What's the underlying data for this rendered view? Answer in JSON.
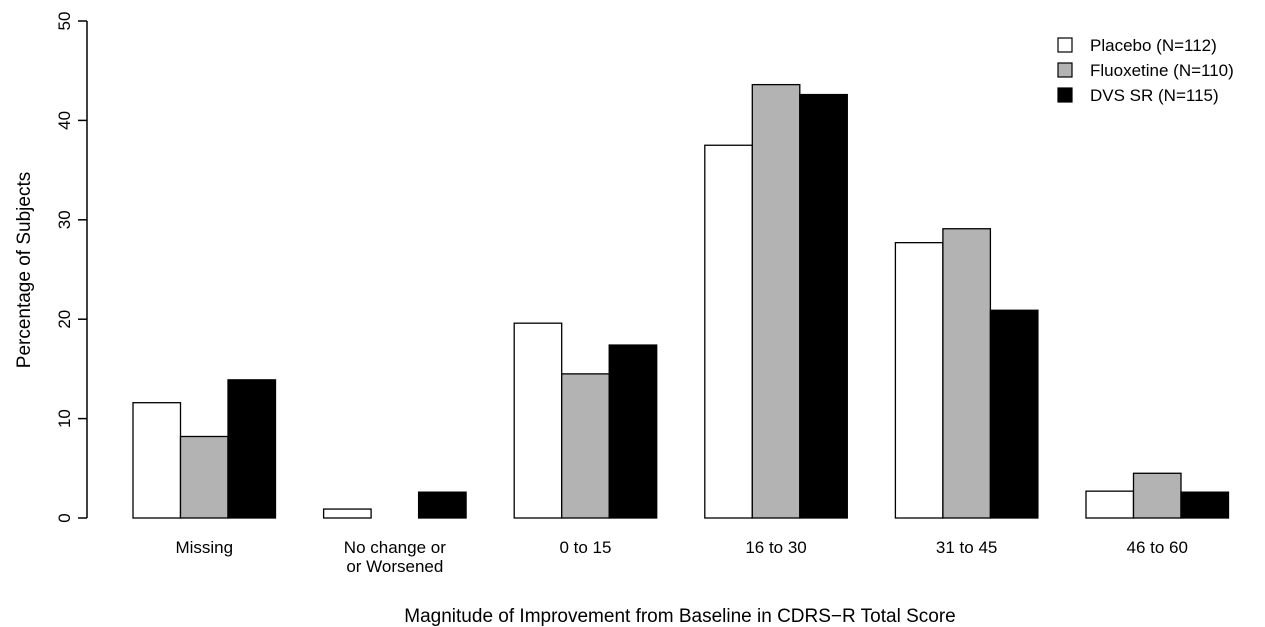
{
  "chart_data": {
    "type": "bar",
    "title": "",
    "xlabel": "Magnitude of Improvement from Baseline in CDRS−R Total Score",
    "ylabel": "Percentage of Subjects",
    "ylim": [
      0,
      50
    ],
    "yticks": [
      0,
      10,
      20,
      30,
      40,
      50
    ],
    "categories": [
      [
        "Missing"
      ],
      [
        "No change or",
        "or Worsened"
      ],
      [
        "0 to 15"
      ],
      [
        "16 to 30"
      ],
      [
        "31 to 45"
      ],
      [
        "46 to 60"
      ]
    ],
    "series": [
      {
        "name": "Placebo (N=112)",
        "color": "#ffffff",
        "values": [
          11.6,
          0.9,
          19.6,
          37.5,
          27.7,
          2.7
        ]
      },
      {
        "name": "Fluoxetine (N=110)",
        "color": "#b3b3b3",
        "values": [
          8.2,
          0.0,
          14.5,
          43.6,
          29.1,
          4.5
        ]
      },
      {
        "name": "DVS SR (N=115)",
        "color": "#000000",
        "values": [
          13.9,
          2.6,
          17.4,
          42.6,
          20.9,
          2.6
        ]
      }
    ],
    "legend": "top-right",
    "grid": false
  }
}
